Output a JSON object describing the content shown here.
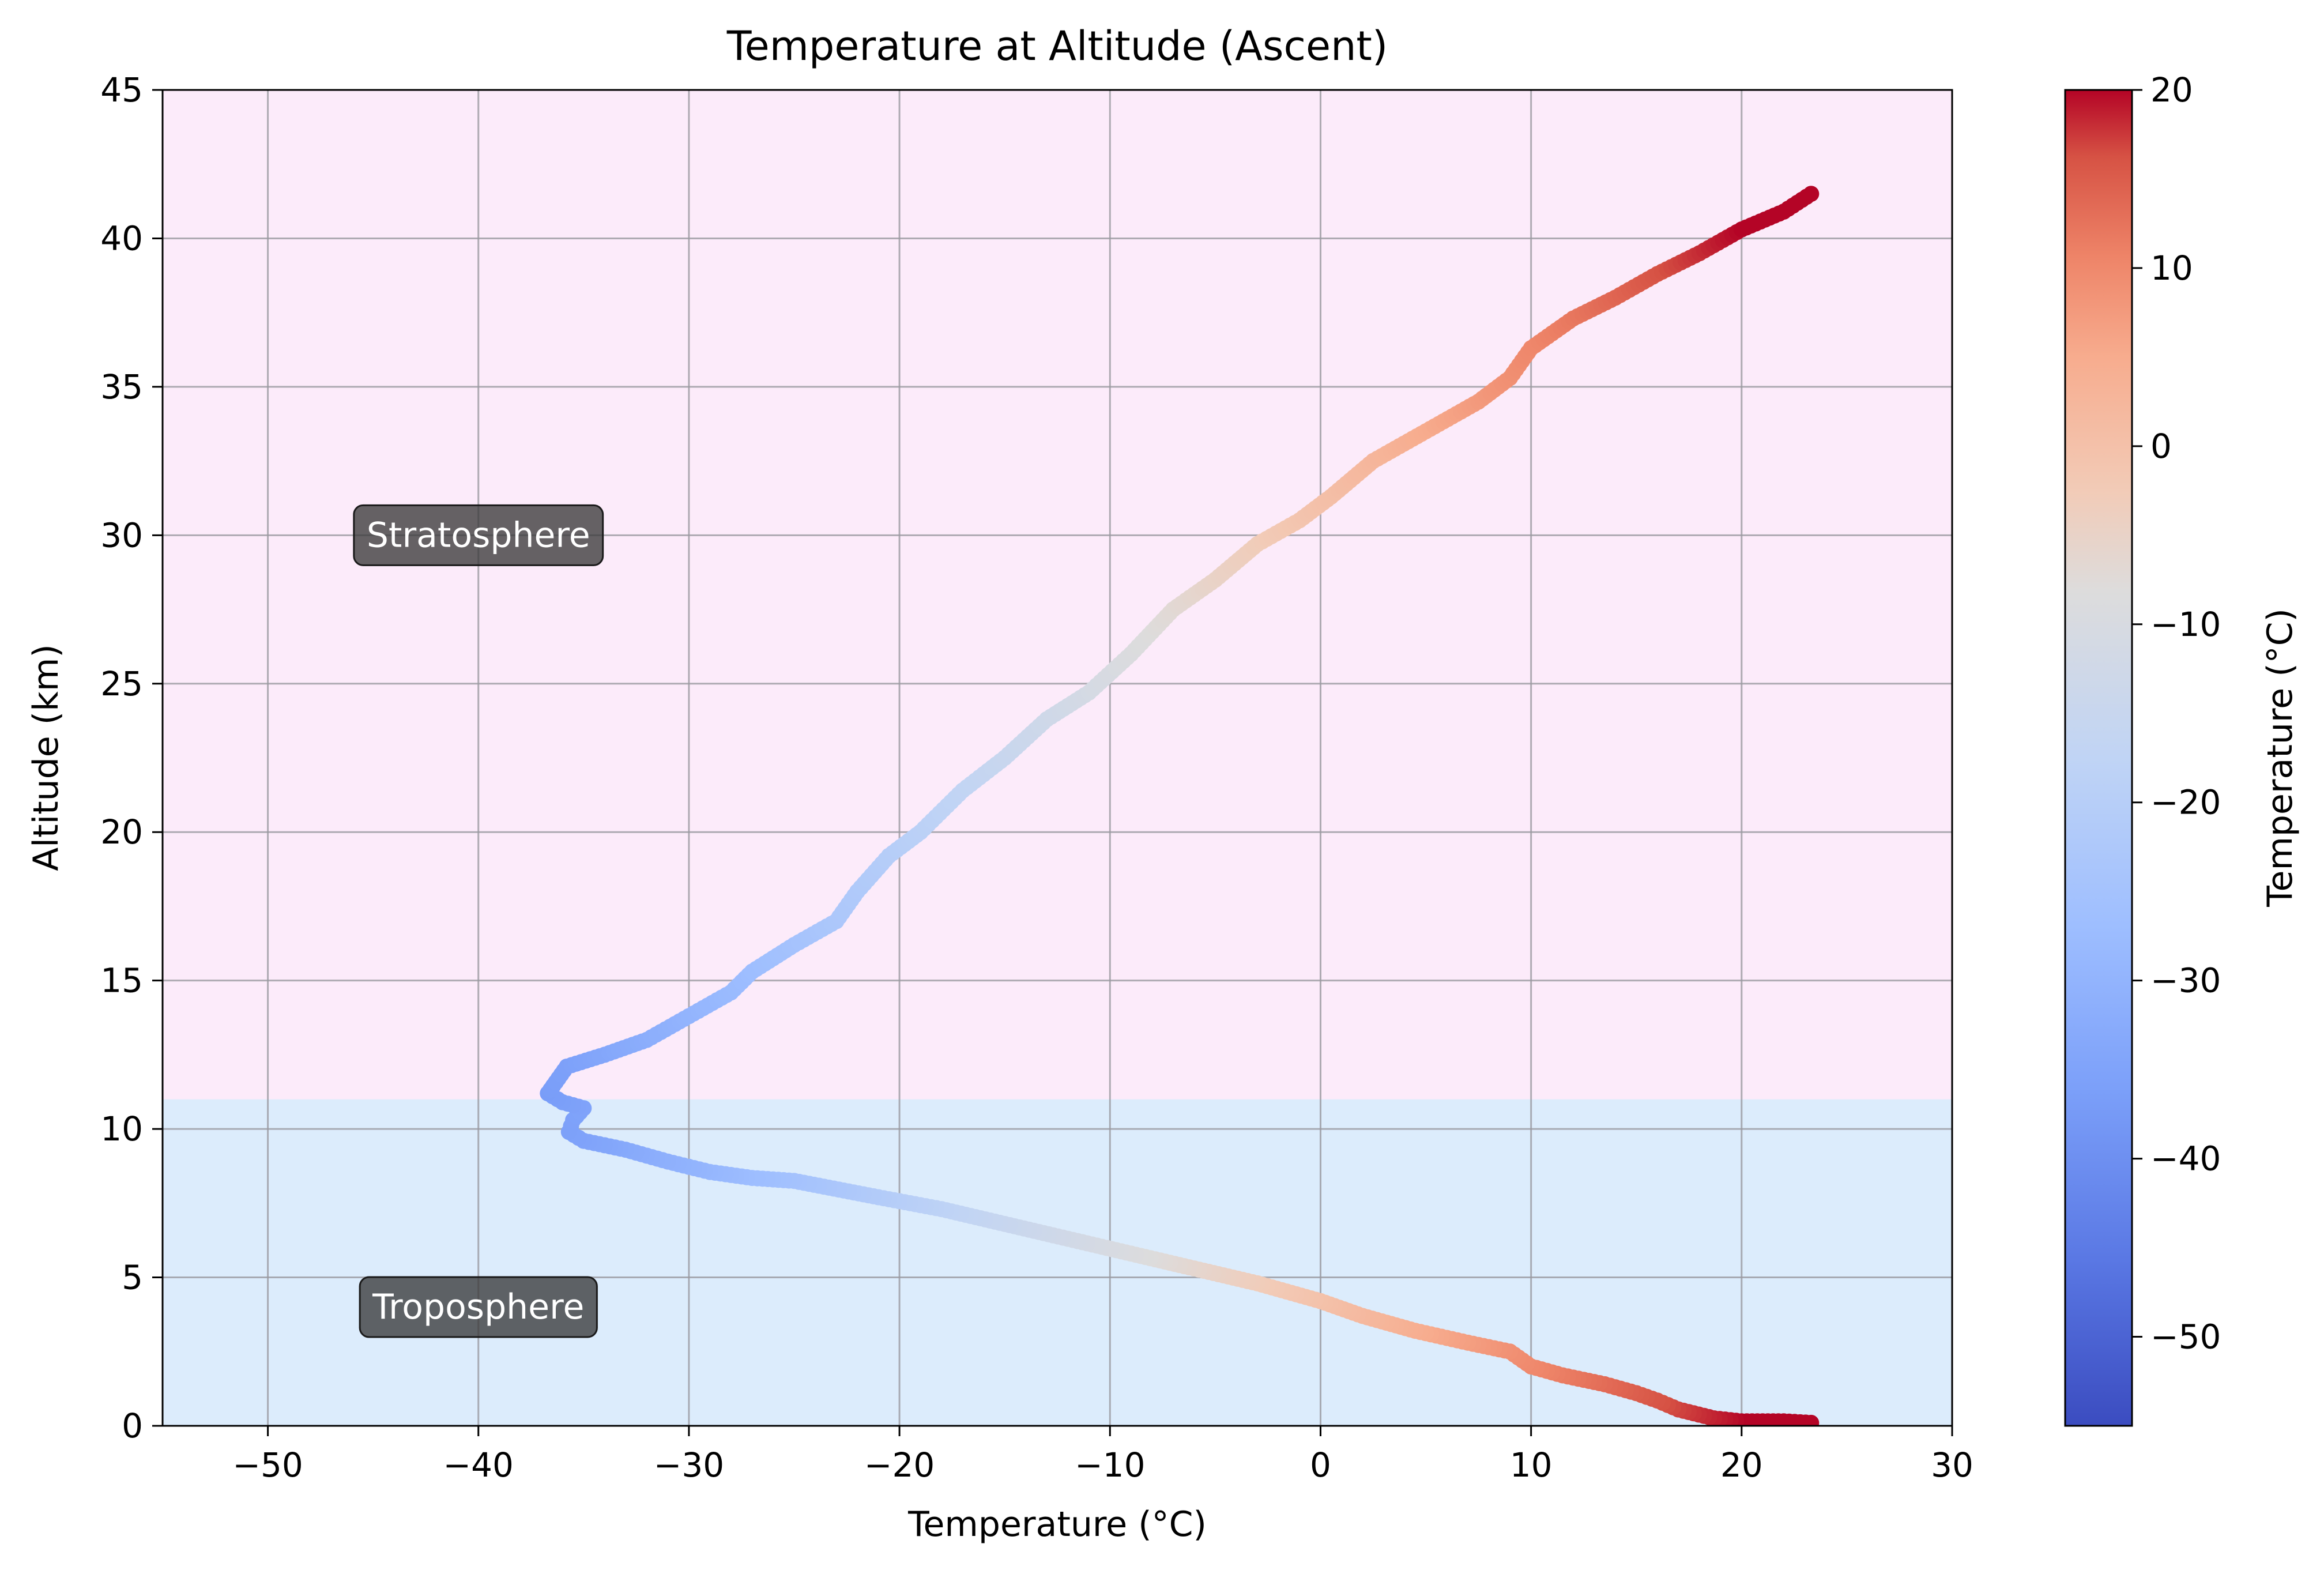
{
  "chart_data": {
    "type": "scatter",
    "title": "Temperature at Altitude (Ascent)",
    "xlabel": "Temperature (°C)",
    "ylabel": "Altitude (km)",
    "xlim": [
      -55,
      30
    ],
    "ylim": [
      0,
      45
    ],
    "xticks": [
      -50,
      -40,
      -30,
      -20,
      -10,
      0,
      10,
      20,
      30
    ],
    "yticks": [
      0,
      5,
      10,
      15,
      20,
      25,
      30,
      35,
      40,
      45
    ],
    "xtick_labels": [
      "−50",
      "−40",
      "−30",
      "−20",
      "−10",
      "0",
      "10",
      "20",
      "30"
    ],
    "ytick_labels": [
      "0",
      "5",
      "10",
      "15",
      "20",
      "25",
      "30",
      "35",
      "40",
      "45"
    ],
    "grid": true,
    "colormap": "coolwarm",
    "color_range": [
      -55,
      20
    ],
    "colorbar": {
      "label": "Temperature (°C)",
      "ticks": [
        20,
        10,
        0,
        -10,
        -20,
        -30,
        -40,
        -50
      ],
      "tick_labels": [
        "20",
        "10",
        "0",
        "−10",
        "−20",
        "−30",
        "−40",
        "−50"
      ]
    },
    "regions": [
      {
        "name": "Troposphere",
        "y_from": 0,
        "y_to": 11,
        "color": "#dcecfc",
        "label_at": [
          -40,
          4
        ]
      },
      {
        "name": "Stratosphere",
        "y_from": 11,
        "y_to": 45,
        "color": "#fcebfa",
        "label_at": [
          -40,
          30
        ]
      }
    ],
    "profile": [
      [
        23.3,
        0.1
      ],
      [
        22.0,
        0.15
      ],
      [
        20.0,
        0.15
      ],
      [
        18.7,
        0.25
      ],
      [
        17.0,
        0.55
      ],
      [
        16.0,
        0.85
      ],
      [
        15.0,
        1.1
      ],
      [
        13.5,
        1.4
      ],
      [
        11.5,
        1.7
      ],
      [
        10.0,
        2.0
      ],
      [
        9.0,
        2.5
      ],
      [
        7.0,
        2.8
      ],
      [
        4.5,
        3.2
      ],
      [
        2.0,
        3.7
      ],
      [
        0.0,
        4.2
      ],
      [
        -3.0,
        4.8
      ],
      [
        -6.0,
        5.3
      ],
      [
        -9.0,
        5.8
      ],
      [
        -12.0,
        6.3
      ],
      [
        -15.0,
        6.8
      ],
      [
        -18.0,
        7.3
      ],
      [
        -21.0,
        7.7
      ],
      [
        -25.0,
        8.25
      ],
      [
        -27.0,
        8.35
      ],
      [
        -29.0,
        8.55
      ],
      [
        -31.0,
        8.9
      ],
      [
        -33.0,
        9.3
      ],
      [
        -35.0,
        9.6
      ],
      [
        -35.7,
        9.9
      ],
      [
        -35.5,
        10.3
      ],
      [
        -35.0,
        10.7
      ],
      [
        -36.0,
        10.9
      ],
      [
        -36.7,
        11.2
      ],
      [
        -36.2,
        11.7
      ],
      [
        -35.8,
        12.1
      ],
      [
        -34.0,
        12.5
      ],
      [
        -32.0,
        13.0
      ],
      [
        -30.0,
        13.8
      ],
      [
        -28.0,
        14.6
      ],
      [
        -27.0,
        15.3
      ],
      [
        -25.0,
        16.2
      ],
      [
        -23.0,
        17.0
      ],
      [
        -22.0,
        18.0
      ],
      [
        -20.5,
        19.2
      ],
      [
        -19.0,
        20.0
      ],
      [
        -17.0,
        21.4
      ],
      [
        -15.0,
        22.5
      ],
      [
        -13.0,
        23.8
      ],
      [
        -11.0,
        24.7
      ],
      [
        -9.0,
        26.0
      ],
      [
        -7.0,
        27.5
      ],
      [
        -5.0,
        28.5
      ],
      [
        -3.0,
        29.7
      ],
      [
        -1.0,
        30.5
      ],
      [
        0.5,
        31.3
      ],
      [
        2.5,
        32.5
      ],
      [
        5.0,
        33.5
      ],
      [
        7.5,
        34.5
      ],
      [
        9.0,
        35.3
      ],
      [
        10.0,
        36.3
      ],
      [
        12.0,
        37.3
      ],
      [
        14.0,
        38.0
      ],
      [
        16.0,
        38.8
      ],
      [
        18.0,
        39.5
      ],
      [
        20.0,
        40.3
      ],
      [
        22.0,
        40.9
      ],
      [
        23.3,
        41.5
      ]
    ]
  }
}
